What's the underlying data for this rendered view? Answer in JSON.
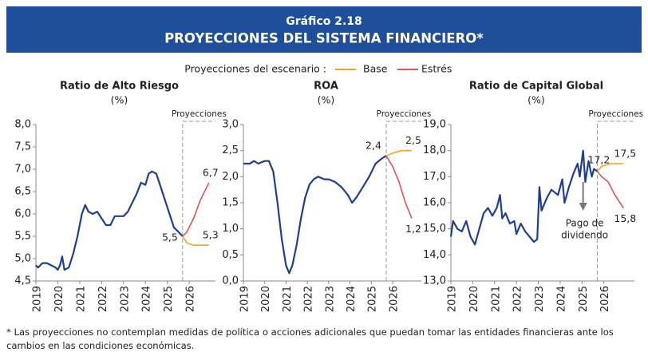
{
  "header": {
    "number": "Gráfico 2.18",
    "title": "PROYECCIONES DEL SISTEMA FINANCIERO*"
  },
  "legend": {
    "label": "Proyecciones del escenario :"
  },
  "footnote": "* Las proyecciones no contemplan medidas de política o acciones adicionales que puedan tomar las entidades financieras ante los cambios en las condiciones económicas.",
  "chart_data": [
    {
      "type": "line",
      "title": "Ratio de Alto Riesgo",
      "subtitle": "(%)",
      "projection_label": "Proyecciones",
      "xlim": [
        2019,
        2027.2
      ],
      "xticks": [
        2019,
        2020,
        2021,
        2022,
        2023,
        2024,
        2025,
        2026
      ],
      "ylim": [
        4.5,
        8.0
      ],
      "yticks": [
        {
          "value": 4.5,
          "label": "4,5"
        },
        {
          "value": 5.0,
          "label": "5,0"
        },
        {
          "value": 5.5,
          "label": "5,5"
        },
        {
          "value": 6.0,
          "label": "6,0"
        },
        {
          "value": 6.5,
          "label": "6,5"
        },
        {
          "value": 7.0,
          "label": "7,0"
        },
        {
          "value": 7.5,
          "label": "7,5"
        },
        {
          "value": 8.0,
          "label": "8,0"
        }
      ],
      "history": {
        "color": "#1f3f8f",
        "x": [
          2019.0,
          2019.1,
          2019.3,
          2019.5,
          2019.7,
          2019.9,
          2020.0,
          2020.1,
          2020.2,
          2020.3,
          2020.5,
          2020.7,
          2020.9,
          2021.1,
          2021.25,
          2021.4,
          2021.6,
          2021.8,
          2022.0,
          2022.2,
          2022.4,
          2022.6,
          2022.8,
          2023.0,
          2023.2,
          2023.4,
          2023.6,
          2023.8,
          2024.0,
          2024.15,
          2024.3,
          2024.5,
          2024.7,
          2024.9,
          2025.1,
          2025.3,
          2025.5,
          2025.7
        ],
        "values": [
          4.85,
          4.8,
          4.9,
          4.9,
          4.85,
          4.8,
          4.75,
          4.85,
          5.05,
          4.75,
          4.8,
          5.1,
          5.5,
          6.0,
          6.2,
          6.05,
          6.0,
          6.05,
          5.9,
          5.75,
          5.75,
          5.95,
          5.95,
          5.95,
          6.05,
          6.25,
          6.45,
          6.7,
          6.65,
          6.9,
          6.95,
          6.9,
          6.6,
          6.3,
          6.0,
          5.7,
          5.6,
          5.5
        ]
      },
      "series": [
        {
          "name": "Base",
          "color": "#f0a818",
          "x": [
            2025.7,
            2025.9,
            2026.2,
            2026.6,
            2026.9
          ],
          "values": [
            5.5,
            5.35,
            5.3,
            5.3,
            5.3
          ],
          "value_labels": [
            "5,5",
            null,
            null,
            null,
            "5,3"
          ]
        },
        {
          "name": "Estrés",
          "color": "#e0535a",
          "x": [
            2025.7,
            2025.9,
            2026.2,
            2026.5,
            2026.9
          ],
          "values": [
            5.5,
            5.6,
            5.9,
            6.3,
            6.7
          ],
          "value_labels": [
            null,
            null,
            null,
            null,
            "6,7"
          ]
        }
      ]
    },
    {
      "type": "line",
      "title": "ROA",
      "subtitle": "(%)",
      "projection_label": "Proyecciones",
      "xlim": [
        2019,
        2027.35
      ],
      "xticks": [
        2019,
        2020,
        2021,
        2022,
        2023,
        2024,
        2025,
        2026
      ],
      "ylim": [
        0.0,
        3.0
      ],
      "yticks": [
        {
          "value": 0.0,
          "label": "0,0"
        },
        {
          "value": 0.5,
          "label": "0,5"
        },
        {
          "value": 1.0,
          "label": "1,0"
        },
        {
          "value": 1.5,
          "label": "1,5"
        },
        {
          "value": 2.0,
          "label": "2,0"
        },
        {
          "value": 2.5,
          "label": "2,5"
        },
        {
          "value": 3.0,
          "label": "3,0"
        }
      ],
      "history": {
        "color": "#1f3f8f",
        "x": [
          2019.0,
          2019.3,
          2019.5,
          2019.7,
          2020.0,
          2020.2,
          2020.4,
          2020.6,
          2020.8,
          2021.0,
          2021.15,
          2021.3,
          2021.5,
          2021.7,
          2021.9,
          2022.1,
          2022.3,
          2022.5,
          2022.8,
          2023.0,
          2023.3,
          2023.6,
          2023.9,
          2024.1,
          2024.3,
          2024.6,
          2024.9,
          2025.2,
          2025.5,
          2025.7
        ],
        "values": [
          2.25,
          2.25,
          2.3,
          2.25,
          2.3,
          2.3,
          2.1,
          1.5,
          0.8,
          0.3,
          0.15,
          0.3,
          0.7,
          1.2,
          1.6,
          1.85,
          1.95,
          2.0,
          1.95,
          1.95,
          1.9,
          1.8,
          1.65,
          1.5,
          1.6,
          1.8,
          2.0,
          2.25,
          2.35,
          2.4
        ]
      },
      "series": [
        {
          "name": "Base",
          "color": "#f0a818",
          "x": [
            2025.7,
            2026.0,
            2026.4,
            2026.9
          ],
          "values": [
            2.4,
            2.45,
            2.5,
            2.5
          ],
          "value_labels": [
            "2,4",
            null,
            null,
            "2,5"
          ]
        },
        {
          "name": "Estrés",
          "color": "#e0535a",
          "x": [
            2025.7,
            2026.0,
            2026.3,
            2026.6,
            2026.9
          ],
          "values": [
            2.4,
            2.2,
            1.9,
            1.5,
            1.2
          ],
          "value_labels": [
            null,
            null,
            null,
            null,
            "1,2"
          ]
        }
      ]
    },
    {
      "type": "line",
      "title": "Ratio de Capital Global",
      "subtitle": "(%)",
      "projection_label": "Proyecciones",
      "annotation": [
        "Pago de",
        "dividendo"
      ],
      "xlim": [
        2019,
        2027.4
      ],
      "xticks": [
        2019,
        2020,
        2021,
        2022,
        2023,
        2024,
        2025,
        2026
      ],
      "ylim": [
        13.0,
        19.0
      ],
      "yticks": [
        {
          "value": 13.0,
          "label": "13,0"
        },
        {
          "value": 14.0,
          "label": "14,0"
        },
        {
          "value": 15.0,
          "label": "15,0"
        },
        {
          "value": 16.0,
          "label": "16,0"
        },
        {
          "value": 17.0,
          "label": "17,0"
        },
        {
          "value": 18.0,
          "label": "18,0"
        },
        {
          "value": 19.0,
          "label": "19,0"
        }
      ],
      "history": {
        "color": "#1f3f8f",
        "x": [
          2019.0,
          2019.1,
          2019.3,
          2019.5,
          2019.7,
          2019.9,
          2020.1,
          2020.3,
          2020.5,
          2020.7,
          2020.9,
          2021.1,
          2021.25,
          2021.35,
          2021.5,
          2021.7,
          2021.9,
          2022.0,
          2022.2,
          2022.4,
          2022.6,
          2022.8,
          2022.95,
          2023.05,
          2023.15,
          2023.4,
          2023.6,
          2023.9,
          2024.1,
          2024.2,
          2024.4,
          2024.6,
          2024.8,
          2024.9,
          2025.05,
          2025.15,
          2025.3,
          2025.45,
          2025.55,
          2025.7
        ],
        "values": [
          14.7,
          15.3,
          15.0,
          14.9,
          15.3,
          14.7,
          14.4,
          15.0,
          15.6,
          15.8,
          15.5,
          15.8,
          16.3,
          15.4,
          15.6,
          15.2,
          15.3,
          14.8,
          15.2,
          14.9,
          14.7,
          14.5,
          14.6,
          16.6,
          15.7,
          16.2,
          16.5,
          16.3,
          16.9,
          16.0,
          16.6,
          17.1,
          17.5,
          17.0,
          18.0,
          16.8,
          17.6,
          17.0,
          17.3,
          17.2
        ]
      },
      "series": [
        {
          "name": "Base",
          "color": "#f0a818",
          "x": [
            2025.7,
            2025.9,
            2026.3,
            2026.9
          ],
          "values": [
            17.2,
            17.4,
            17.5,
            17.5
          ],
          "value_labels": [
            "17,2",
            null,
            null,
            "17,5"
          ]
        },
        {
          "name": "Estrés",
          "color": "#e0535a",
          "x": [
            2025.7,
            2025.9,
            2026.2,
            2026.5,
            2026.9
          ],
          "values": [
            17.2,
            17.0,
            16.8,
            16.3,
            15.8
          ],
          "value_labels": [
            null,
            null,
            null,
            null,
            "15,8"
          ]
        }
      ]
    }
  ]
}
